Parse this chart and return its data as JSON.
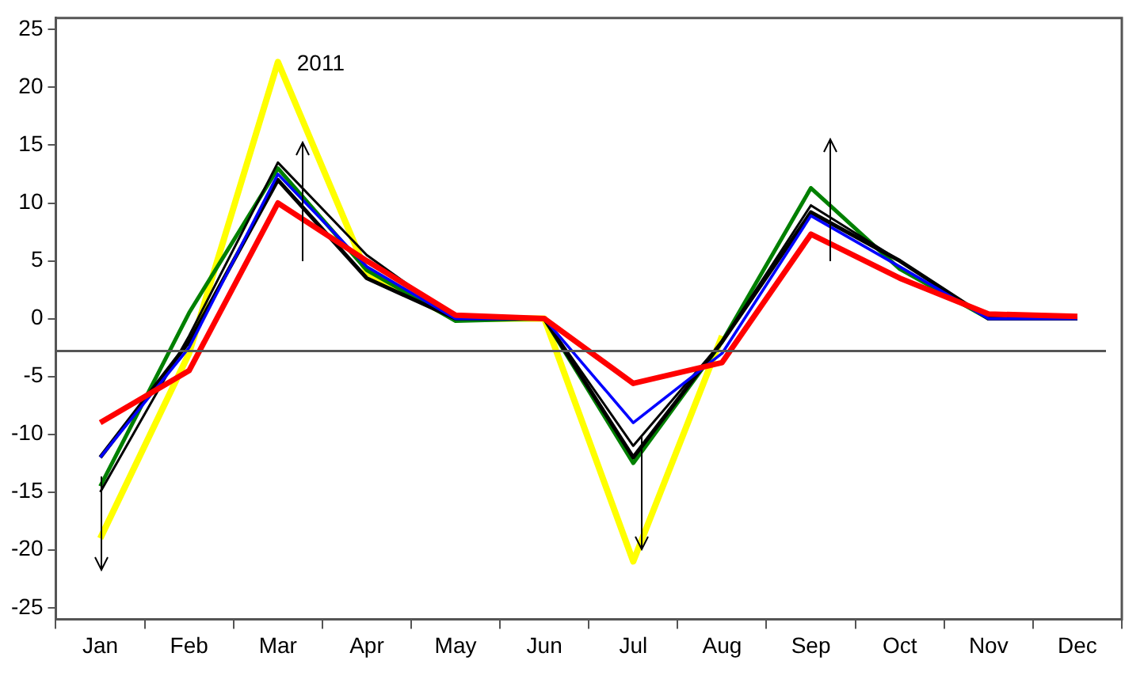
{
  "chart_data": {
    "type": "line",
    "categories": [
      "Jan",
      "Feb",
      "Mar",
      "Apr",
      "May",
      "Jun",
      "Jul",
      "Aug",
      "Sep",
      "Oct",
      "Nov",
      "Dec"
    ],
    "ylim": [
      -26,
      26
    ],
    "yticks": [
      -25,
      -20,
      -15,
      -10,
      -5,
      0,
      5,
      10,
      15,
      20,
      25
    ],
    "grid": false,
    "legend": false,
    "marker": "none",
    "line_style": "solid",
    "series": [
      {
        "color": "#ff0000",
        "values": [
          -9,
          -4.5,
          10,
          5,
          0.3,
          0,
          -5.6,
          -3.8,
          7.3,
          3.5,
          0.4,
          0.2
        ]
      },
      {
        "color": "#0000ff",
        "values": [
          -12,
          -2.5,
          12.5,
          4.5,
          0,
          0,
          -9,
          -3,
          8.9,
          4.5,
          0,
          0
        ]
      },
      {
        "color": "#000000",
        "values": [
          -15,
          -1.5,
          13.5,
          5.5,
          0,
          0,
          -11,
          -2,
          9.8,
          5,
          0,
          0
        ]
      },
      {
        "color": "#000000",
        "values": [
          -12,
          -2,
          12,
          3.5,
          0,
          0,
          -12,
          -2,
          9.2,
          5,
          0,
          0
        ]
      },
      {
        "color": "#008000",
        "values": [
          -14.5,
          0.5,
          13,
          4.2,
          -0.2,
          0,
          -12.5,
          -2,
          11.3,
          4.3,
          0,
          0
        ]
      },
      {
        "color": "#ffff00",
        "values": [
          -19,
          -3,
          22.2,
          4,
          0,
          0,
          -21,
          -1.5,
          null,
          null,
          null,
          null
        ]
      }
    ],
    "ref_lines": [
      {
        "axis": "y",
        "value": -2.8,
        "color": "#555555"
      }
    ],
    "annotations": [
      {
        "text": "2011",
        "x": "Mar",
        "y": 22
      }
    ]
  }
}
